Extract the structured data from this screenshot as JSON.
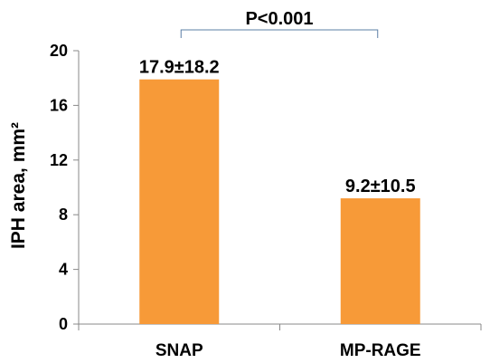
{
  "chart_data": {
    "type": "bar",
    "categories": [
      "SNAP",
      "MP-RAGE"
    ],
    "values": [
      17.9,
      9.2
    ],
    "data_labels": [
      "17.9±18.2",
      "9.2±10.5"
    ],
    "title": "",
    "xlabel": "",
    "ylabel": "IPH area, mm²",
    "ylim": [
      0,
      20
    ],
    "yticks": [
      0,
      4,
      8,
      12,
      16,
      20
    ],
    "grid": false,
    "legend": "none",
    "bar_color": "#F79A38",
    "annotation": {
      "text": "P<0.001",
      "from": "SNAP",
      "to": "MP-RAGE",
      "color": "#5B7FA6"
    }
  }
}
